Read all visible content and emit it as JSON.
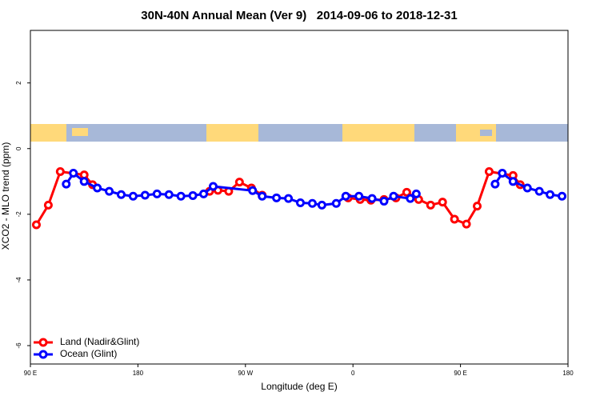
{
  "chart_data": {
    "type": "line",
    "title": "30N-40N Annual Mean (Ver 9)   2014-09-06 to 2018-12-31",
    "xlabel": "Longitude (deg E)",
    "ylabel": "XCO2 - MLO trend (ppm)",
    "xlim": [
      90,
      540
    ],
    "xticks": [
      {
        "value": 90,
        "label": "90 E"
      },
      {
        "value": 180,
        "label": "180"
      },
      {
        "value": 270,
        "label": "90 W"
      },
      {
        "value": 360,
        "label": "0"
      },
      {
        "value": 450,
        "label": "90 E"
      },
      {
        "value": 540,
        "label": "180"
      }
    ],
    "ylim": [
      -6.56,
      3.6
    ],
    "yticks": [
      -6,
      -4,
      -2,
      0,
      2
    ],
    "legend": "lower left",
    "series": [
      {
        "name": "Land (Nadir&Glint)",
        "color": "#ff0000",
        "x": [
          95,
          105,
          115,
          135,
          142,
          null,
          240,
          247,
          256,
          265,
          275,
          284,
          null,
          356,
          366,
          375,
          386,
          396,
          405,
          415,
          425,
          435,
          445,
          455,
          464,
          474,
          494,
          500
        ],
        "values": [
          -2.32,
          -1.72,
          -0.7,
          -0.8,
          -1.1,
          null,
          -1.3,
          -1.27,
          -1.3,
          -1.02,
          -1.2,
          -1.42,
          null,
          -1.5,
          -1.55,
          -1.57,
          -1.55,
          -1.5,
          -1.33,
          -1.55,
          -1.72,
          -1.63,
          -2.15,
          -2.3,
          -1.75,
          -0.7,
          -0.82,
          -1.1
        ]
      },
      {
        "name": "Ocean (Glint)",
        "color": "#0000ff",
        "x": [
          120,
          126,
          135,
          146,
          156,
          166,
          176,
          186,
          196,
          206,
          216,
          226,
          235,
          243,
          276,
          284,
          296,
          306,
          316,
          326,
          334,
          346,
          354,
          365,
          376,
          386,
          394,
          408,
          413,
          null,
          479,
          485,
          494,
          506,
          516,
          525,
          535
        ],
        "values": [
          -1.08,
          -0.75,
          -1.0,
          -1.2,
          -1.3,
          -1.4,
          -1.45,
          -1.42,
          -1.38,
          -1.4,
          -1.45,
          -1.43,
          -1.38,
          -1.15,
          -1.28,
          -1.45,
          -1.5,
          -1.52,
          -1.65,
          -1.67,
          -1.72,
          -1.67,
          -1.45,
          -1.45,
          -1.52,
          -1.6,
          -1.45,
          -1.52,
          -1.38,
          null,
          -1.08,
          -0.75,
          -1.0,
          -1.2,
          -1.3,
          -1.4,
          -1.45
        ]
      }
    ]
  }
}
